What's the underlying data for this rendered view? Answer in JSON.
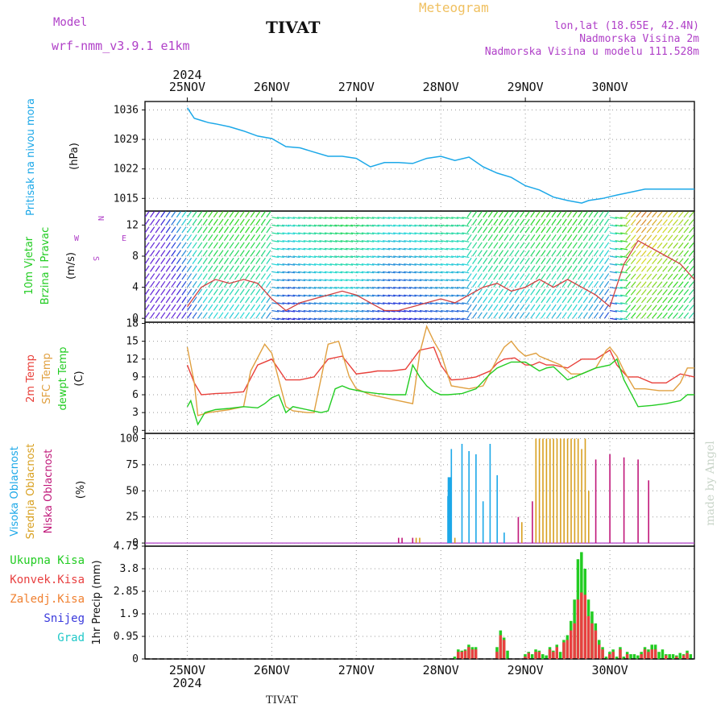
{
  "header": {
    "model_label": "Model",
    "model_name": "wrf-nmm_v3.9.1  e1km",
    "station": "TIVAT",
    "product": "Meteogram",
    "location": "lon,lat (18.65E, 42.4N)",
    "elevation": "Nadmorska Visina 2m",
    "model_elevation": "Nadmorska Visina u modelu 111.528m",
    "footer_station": "TIVAT",
    "credit": "made by Angel"
  },
  "colors": {
    "pressure": "#1ca8e8",
    "temp2m": "#e8403a",
    "sfc_temp": "#e0a040",
    "dewpoint": "#22cc22",
    "cloud_high": "#1ca8e8",
    "cloud_mid": "#d8a020",
    "cloud_low": "#c0187a",
    "rain_total": "#22cc22",
    "rain_conv": "#e84040",
    "rain_frz": "#f08030",
    "snow": "#3a3adc",
    "hail": "#20c8c8",
    "title_purple": "#b040c8",
    "title_orange": "#f0c060"
  },
  "chart_data": [
    {
      "type": "line",
      "panel": "pressure",
      "ylabel": [
        "Pritisak na nivou mora",
        "(hPa)"
      ],
      "ylim": [
        1012,
        1038
      ],
      "yticks": [
        1015,
        1022,
        1029,
        1036
      ],
      "x_day_labels": [
        "25NOV",
        "26NOV",
        "27NOV",
        "28NOV",
        "29NOV",
        "30NOV"
      ],
      "year": "2024",
      "x": [
        0,
        2,
        4,
        6,
        8,
        12,
        16,
        20,
        24,
        28,
        32,
        36,
        40,
        44,
        48,
        52,
        56,
        60,
        64,
        68,
        72,
        76,
        80,
        84,
        88,
        92,
        96,
        100,
        104,
        108,
        112,
        114,
        118,
        122,
        126,
        130,
        144
      ],
      "values": [
        1036.5,
        1034,
        1033.5,
        1033,
        1032.7,
        1032,
        1031,
        1029.8,
        1029.2,
        1027.3,
        1027,
        1026,
        1025,
        1025,
        1024.5,
        1022.5,
        1023.5,
        1023.5,
        1023.3,
        1024.5,
        1025,
        1024,
        1024.8,
        1022.5,
        1021,
        1020,
        1018,
        1017,
        1015.3,
        1014.5,
        1013.9,
        1014.5,
        1015,
        1015.8,
        1016.5,
        1017.2,
        1017.2
      ]
    },
    {
      "type": "line",
      "panel": "wind",
      "ylabel": [
        "10m Vjetar",
        "Brzina i Pravac",
        "(m/s)"
      ],
      "compass": [
        "N",
        "S",
        "W",
        "E"
      ],
      "ylim": [
        -0.5,
        13.8
      ],
      "yticks": [
        0,
        4,
        8,
        12
      ],
      "x": [
        0,
        4,
        8,
        12,
        16,
        20,
        24,
        28,
        32,
        36,
        40,
        44,
        48,
        52,
        56,
        60,
        64,
        68,
        72,
        76,
        80,
        84,
        88,
        92,
        96,
        100,
        102,
        104,
        108,
        112,
        116,
        120,
        124,
        128,
        132,
        136,
        140,
        144
      ],
      "values": [
        1.5,
        4,
        5,
        4.5,
        5,
        4.5,
        2.5,
        1,
        2,
        2.5,
        3,
        3.5,
        3,
        2,
        1,
        1,
        1.5,
        2,
        2.5,
        2,
        3,
        4,
        4.5,
        3.5,
        4,
        5,
        4.5,
        4,
        5,
        4,
        3,
        1.5,
        7,
        10,
        9,
        8,
        7,
        5
      ]
    },
    {
      "type": "line",
      "panel": "temperature",
      "ylabel": [
        "2m Temp",
        "SFC Temp",
        "dewpt Temp",
        "(C)"
      ],
      "ylim": [
        -0.5,
        18.2
      ],
      "yticks": [
        0,
        3,
        6,
        9,
        12,
        15,
        18
      ],
      "series": [
        {
          "name": "2m Temp",
          "x": [
            0,
            2,
            4,
            8,
            12,
            16,
            20,
            24,
            28,
            30,
            32,
            36,
            40,
            44,
            48,
            52,
            54,
            58,
            62,
            66,
            70,
            72,
            75,
            78,
            82,
            86,
            88,
            90,
            93,
            96,
            98,
            100,
            102,
            104,
            108,
            112,
            116,
            120,
            122,
            125,
            128,
            132,
            136,
            140,
            144
          ],
          "values": [
            11,
            8,
            6,
            6.2,
            6.3,
            6.5,
            11,
            12,
            8.5,
            8.5,
            8.5,
            9,
            12,
            12.5,
            9.5,
            9.8,
            10,
            10,
            10.3,
            13.5,
            14,
            11,
            8.5,
            8.6,
            9,
            10,
            11.3,
            12,
            12.2,
            11,
            11,
            11.5,
            11,
            11,
            10.5,
            12,
            12,
            13.5,
            11,
            9,
            9,
            8,
            8,
            9.5,
            9
          ]
        },
        {
          "name": "SFC Temp",
          "x": [
            0,
            2,
            3,
            6,
            12,
            16,
            18,
            22,
            24,
            28,
            30,
            34,
            36,
            40,
            43,
            46,
            48,
            52,
            56,
            60,
            64,
            66,
            68,
            70,
            72,
            75,
            80,
            84,
            88,
            90,
            92,
            94,
            96,
            99,
            100,
            102,
            104,
            106,
            109,
            112,
            116,
            119,
            120,
            122,
            124,
            127,
            130,
            134,
            138,
            140,
            142,
            144
          ],
          "values": [
            14,
            8,
            2.5,
            3,
            3.5,
            4,
            10,
            14.5,
            13,
            4,
            3.3,
            3,
            3,
            14.5,
            15,
            9,
            7,
            6,
            5.5,
            5,
            4.5,
            13,
            17.5,
            15,
            13,
            7.5,
            7,
            7.5,
            12,
            14,
            15,
            13.5,
            12.5,
            13,
            12.5,
            12,
            11.5,
            11,
            9.5,
            9.5,
            10.5,
            13.5,
            14,
            12.5,
            10,
            7,
            7,
            6.7,
            6.7,
            8,
            10.5,
            10.5
          ]
        },
        {
          "name": "dewpt Temp",
          "x": [
            0,
            1,
            3,
            5,
            8,
            12,
            16,
            20,
            22,
            24,
            26,
            28,
            30,
            34,
            38,
            40,
            42,
            44,
            46,
            50,
            54,
            58,
            62,
            64,
            66,
            68,
            70,
            72,
            74,
            78,
            82,
            86,
            88,
            90,
            92,
            96,
            100,
            102,
            104,
            108,
            112,
            116,
            120,
            122,
            124,
            128,
            132,
            136,
            140,
            142,
            144
          ],
          "values": [
            4,
            5,
            1,
            3,
            3.5,
            3.7,
            4,
            3.8,
            4.5,
            5.5,
            6,
            3,
            4,
            3.5,
            3,
            3.3,
            7,
            7.5,
            7,
            6.5,
            6.2,
            6,
            6,
            11,
            9,
            7.5,
            6.5,
            6,
            6,
            6.2,
            7,
            9.5,
            10.5,
            11,
            11.5,
            11.5,
            10,
            10.5,
            10.7,
            8.5,
            9.5,
            10.5,
            11,
            12,
            8.5,
            4,
            4.2,
            4.5,
            5,
            6,
            6
          ]
        }
      ]
    },
    {
      "type": "bar",
      "panel": "cloud",
      "ylabel": [
        "Visoka Oblacnost",
        "Srednja Oblacnost",
        "Niska Oblacnost",
        "(%)"
      ],
      "ylim": [
        -3,
        105
      ],
      "yticks": [
        0,
        25,
        50,
        75,
        100
      ],
      "series": [
        {
          "name": "Visoka Oblacnost",
          "x": [
            74,
            74.4,
            75,
            78,
            80,
            82,
            84,
            86,
            88,
            90
          ],
          "values": [
            45,
            63,
            90,
            95,
            88,
            85,
            40,
            95,
            65,
            10
          ]
        },
        {
          "name": "Srednja Oblacnost",
          "x": [
            65,
            66,
            76,
            95,
            99,
            100,
            101,
            102,
            103,
            104,
            105,
            106,
            107,
            108,
            109,
            110,
            111,
            112,
            113,
            114
          ],
          "values": [
            5,
            5,
            5,
            20,
            100,
            100,
            100,
            100,
            100,
            100,
            100,
            100,
            100,
            100,
            100,
            100,
            100,
            90,
            100,
            50
          ]
        },
        {
          "name": "Niska Oblacnost",
          "x": [
            60,
            61,
            64,
            94,
            98,
            116,
            120,
            124,
            128,
            131
          ],
          "values": [
            5,
            5,
            5,
            25,
            40,
            80,
            85,
            82,
            80,
            60
          ]
        }
      ]
    },
    {
      "type": "bar",
      "panel": "precipitation",
      "ylabel": [
        "1hr Precip (mm)"
      ],
      "legend": [
        "Ukupna Kisa",
        "Konvek.Kisa",
        "Zaledj.Kisa",
        "Snijeg",
        "Grad"
      ],
      "ylim": [
        0,
        4.75
      ],
      "yticks": [
        0,
        0.95,
        1.9,
        2.85,
        3.8,
        4.75
      ],
      "series": [
        {
          "name": "Ukupna Kisa",
          "x": [
            76,
            77,
            78,
            79,
            80,
            81,
            82,
            88,
            89,
            90,
            91,
            96,
            97,
            98,
            99,
            100,
            101,
            102,
            103,
            104,
            105,
            106,
            107,
            108,
            109,
            110,
            111,
            112,
            113,
            114,
            115,
            116,
            117,
            118,
            119,
            120,
            121,
            122,
            123,
            124,
            125,
            126,
            127,
            128,
            129,
            130,
            131,
            132,
            133,
            134,
            135,
            136,
            137,
            138,
            139,
            140,
            141,
            142,
            143
          ],
          "values": [
            0.1,
            0.4,
            0.35,
            0.4,
            0.6,
            0.5,
            0.5,
            0.5,
            1.2,
            0.9,
            0.35,
            0.2,
            0.3,
            0.2,
            0.4,
            0.35,
            0.2,
            0.15,
            0.5,
            0.35,
            0.6,
            0.3,
            0.8,
            1.0,
            1.6,
            2.5,
            4.2,
            4.5,
            3.8,
            2.5,
            2.0,
            1.5,
            0.8,
            0.5,
            0.1,
            0.3,
            0.4,
            0.1,
            0.5,
            0.1,
            0.3,
            0.2,
            0.2,
            0.15,
            0.3,
            0.5,
            0.4,
            0.6,
            0.6,
            0.3,
            0.4,
            0.2,
            0.2,
            0.2,
            0.15,
            0.25,
            0.2,
            0.35,
            0.2
          ]
        },
        {
          "name": "Konvek.Kisa",
          "x": [
            77,
            78,
            79,
            80,
            81,
            82,
            88,
            89,
            90,
            96,
            97,
            99,
            100,
            103,
            104,
            105,
            107,
            108,
            109,
            110,
            111,
            112,
            113,
            114,
            115,
            116,
            117,
            118,
            120,
            121,
            123,
            125,
            129,
            130,
            131,
            132,
            133,
            136,
            139,
            141,
            142
          ],
          "values": [
            0.3,
            0.3,
            0.35,
            0.5,
            0.4,
            0.4,
            0.3,
            1.0,
            0.8,
            0.1,
            0.25,
            0.3,
            0.3,
            0.4,
            0.3,
            0.5,
            0.7,
            0.8,
            1.2,
            1.5,
            2.5,
            2.8,
            2.7,
            1.8,
            1.5,
            1.2,
            0.6,
            0.4,
            0.2,
            0.3,
            0.4,
            0.2,
            0.2,
            0.4,
            0.3,
            0.4,
            0.4,
            0.15,
            0.1,
            0.15,
            0.25
          ]
        },
        {
          "name": "Zaledj.Kisa",
          "x": [],
          "values": []
        },
        {
          "name": "Snijeg",
          "x": [],
          "values": []
        },
        {
          "name": "Grad",
          "x": [],
          "values": []
        }
      ]
    }
  ]
}
